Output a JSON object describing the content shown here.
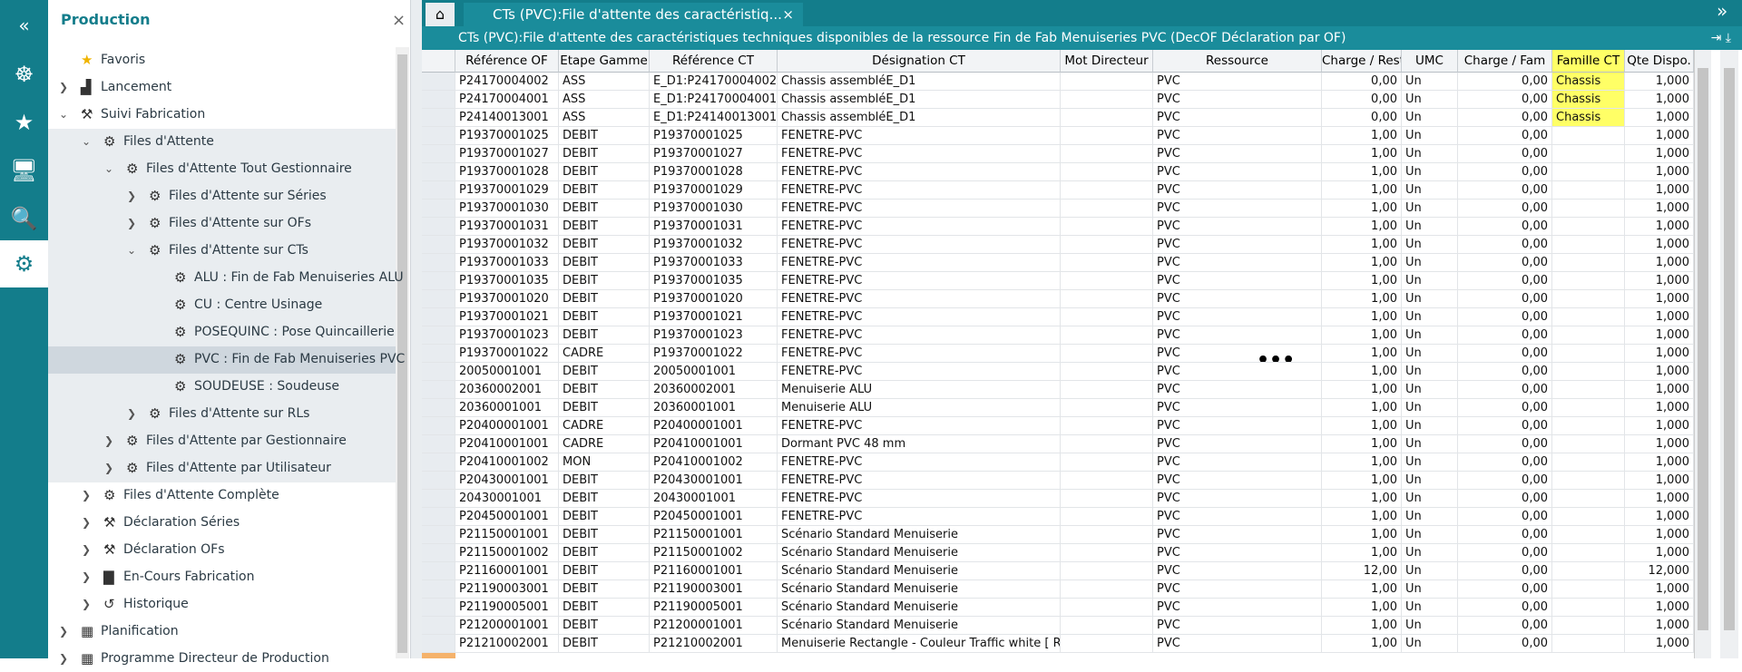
{
  "nav": {
    "title": "Production",
    "items": [
      "Favoris",
      "Lancement",
      "Suivi Fabrication",
      "Files d'Attente",
      "Files d'Attente Tout Gestionnaire",
      "Files d'Attente sur Séries",
      "Files d'Attente sur OFs",
      "Files d'Attente sur CTs",
      "ALU : Fin de Fab Menuiseries ALU",
      "CU : Centre Usinage",
      "POSEQUINC : Pose Quincaillerie",
      "PVC : Fin de Fab Menuiseries PVC",
      "SOUDEUSE : Soudeuse",
      "Files d'Attente sur RLs",
      "Files d'Attente par Gestionnaire",
      "Files d'Attente par Utilisateur",
      "Files d'Attente Complète",
      "Déclaration Séries",
      "Déclaration OFs",
      "En-Cours Fabrication",
      "Historique",
      "Planification",
      "Programme Directeur de Production"
    ]
  },
  "tab": {
    "label": "CTs (PVC):File d'attente des caractéristiq..."
  },
  "view": {
    "title": "CTs (PVC):File d'attente des caractéristiques techniques disponibles de la ressource Fin de Fab Menuiseries PVC (DecOF Déclaration par OF)"
  },
  "table": {
    "columns": [
      "Référence OF",
      "Etape Gamme",
      "Référence CT",
      "Désignation CT",
      "Mot Directeur",
      "Ressource",
      "Charge / Reste",
      "UMC",
      "Charge / Fam",
      "Famille CT",
      "Qte Dispo."
    ],
    "rows": [
      [
        "P24170004002",
        "ASS",
        "E_D1:P24170004002",
        "Chassis assembléE_D1",
        null,
        "PVC",
        "0,00",
        "Un",
        "0,00",
        "Chassis",
        "1,000"
      ],
      [
        "P24170004001",
        "ASS",
        "E_D1:P24170004001",
        "Chassis assembléE_D1",
        null,
        "PVC",
        "0,00",
        "Un",
        "0,00",
        "Chassis",
        "1,000"
      ],
      [
        "P24140013001",
        "ASS",
        "E_D1:P24140013001",
        "Chassis assembléE_D1",
        null,
        "PVC",
        "0,00",
        "Un",
        "0,00",
        "Chassis",
        "1,000"
      ],
      [
        "P19370001025",
        "DEBIT",
        "P19370001025",
        "FENETRE-PVC",
        null,
        "PVC",
        "1,00",
        "Un",
        "0,00",
        null,
        "1,000"
      ],
      [
        "P19370001027",
        "DEBIT",
        "P19370001027",
        "FENETRE-PVC",
        null,
        "PVC",
        "1,00",
        "Un",
        "0,00",
        null,
        "1,000"
      ],
      [
        "P19370001028",
        "DEBIT",
        "P19370001028",
        "FENETRE-PVC",
        null,
        "PVC",
        "1,00",
        "Un",
        "0,00",
        null,
        "1,000"
      ],
      [
        "P19370001029",
        "DEBIT",
        "P19370001029",
        "FENETRE-PVC",
        null,
        "PVC",
        "1,00",
        "Un",
        "0,00",
        null,
        "1,000"
      ],
      [
        "P19370001030",
        "DEBIT",
        "P19370001030",
        "FENETRE-PVC",
        null,
        "PVC",
        "1,00",
        "Un",
        "0,00",
        null,
        "1,000"
      ],
      [
        "P19370001031",
        "DEBIT",
        "P19370001031",
        "FENETRE-PVC",
        null,
        "PVC",
        "1,00",
        "Un",
        "0,00",
        null,
        "1,000"
      ],
      [
        "P19370001032",
        "DEBIT",
        "P19370001032",
        "FENETRE-PVC",
        null,
        "PVC",
        "1,00",
        "Un",
        "0,00",
        null,
        "1,000"
      ],
      [
        "P19370001033",
        "DEBIT",
        "P19370001033",
        "FENETRE-PVC",
        null,
        "PVC",
        "1,00",
        "Un",
        "0,00",
        null,
        "1,000"
      ],
      [
        "P19370001035",
        "DEBIT",
        "P19370001035",
        "FENETRE-PVC",
        null,
        "PVC",
        "1,00",
        "Un",
        "0,00",
        null,
        "1,000"
      ],
      [
        "P19370001020",
        "DEBIT",
        "P19370001020",
        "FENETRE-PVC",
        null,
        "PVC",
        "1,00",
        "Un",
        "0,00",
        null,
        "1,000"
      ],
      [
        "P19370001021",
        "DEBIT",
        "P19370001021",
        "FENETRE-PVC",
        null,
        "PVC",
        "1,00",
        "Un",
        "0,00",
        null,
        "1,000"
      ],
      [
        "P19370001023",
        "DEBIT",
        "P19370001023",
        "FENETRE-PVC",
        null,
        "PVC",
        "1,00",
        "Un",
        "0,00",
        null,
        "1,000"
      ],
      [
        "P19370001022",
        "CADRE",
        "P19370001022",
        "FENETRE-PVC",
        null,
        "PVC",
        "1,00",
        "Un",
        "0,00",
        null,
        "1,000"
      ],
      [
        "20050001001",
        "DEBIT",
        "20050001001",
        "FENETRE-PVC",
        null,
        "PVC",
        "1,00",
        "Un",
        "0,00",
        null,
        "1,000"
      ],
      [
        "20360002001",
        "DEBIT",
        "20360002001",
        "Menuiserie ALU",
        null,
        "PVC",
        "1,00",
        "Un",
        "0,00",
        null,
        "1,000"
      ],
      [
        "20360001001",
        "DEBIT",
        "20360001001",
        "Menuiserie ALU",
        null,
        "PVC",
        "1,00",
        "Un",
        "0,00",
        null,
        "1,000"
      ],
      [
        "P20400001001",
        "CADRE",
        "P20400001001",
        "FENETRE-PVC",
        null,
        "PVC",
        "1,00",
        "Un",
        "0,00",
        null,
        "1,000"
      ],
      [
        "P20410001001",
        "CADRE",
        "P20410001001",
        "Dormant PVC 48 mm",
        null,
        "PVC",
        "1,00",
        "Un",
        "0,00",
        null,
        "1,000"
      ],
      [
        "P20410001002",
        "MON",
        "P20410001002",
        "FENETRE-PVC",
        null,
        "PVC",
        "1,00",
        "Un",
        "0,00",
        null,
        "1,000"
      ],
      [
        "P20430001001",
        "DEBIT",
        "P20430001001",
        "FENETRE-PVC",
        null,
        "PVC",
        "1,00",
        "Un",
        "0,00",
        null,
        "1,000"
      ],
      [
        "20430001001",
        "DEBIT",
        "20430001001",
        "FENETRE-PVC",
        null,
        "PVC",
        "1,00",
        "Un",
        "0,00",
        null,
        "1,000"
      ],
      [
        "P20450001001",
        "DEBIT",
        "P20450001001",
        "FENETRE-PVC",
        null,
        "PVC",
        "1,00",
        "Un",
        "0,00",
        null,
        "1,000"
      ],
      [
        "P21150001001",
        "DEBIT",
        "P21150001001",
        "Scénario Standard Menuiserie",
        null,
        "PVC",
        "1,00",
        "Un",
        "0,00",
        null,
        "1,000"
      ],
      [
        "P21150001002",
        "DEBIT",
        "P21150001002",
        "Scénario Standard Menuiserie",
        null,
        "PVC",
        "1,00",
        "Un",
        "0,00",
        null,
        "1,000"
      ],
      [
        "P21160001001",
        "DEBIT",
        "P21160001001",
        "Scénario Standard Menuiserie",
        null,
        "PVC",
        "12,00",
        "Un",
        "0,00",
        null,
        "12,000"
      ],
      [
        "P21190003001",
        "DEBIT",
        "P21190003001",
        "Scénario Standard Menuiserie",
        null,
        "PVC",
        "1,00",
        "Un",
        "0,00",
        null,
        "1,000"
      ],
      [
        "P21190005001",
        "DEBIT",
        "P21190005001",
        "Scénario Standard Menuiserie",
        null,
        "PVC",
        "1,00",
        "Un",
        "0,00",
        null,
        "1,000"
      ],
      [
        "P21200001001",
        "DEBIT",
        "P21200001001",
        "Scénario Standard Menuiserie",
        null,
        "PVC",
        "1,00",
        "Un",
        "0,00",
        null,
        "1,000"
      ],
      [
        "P21210002001",
        "DEBIT",
        "P21210002001",
        "Menuiserie Rectangle - Couleur Traffic white  [ RA",
        null,
        "PVC",
        "1,00",
        "Un",
        "0,00",
        null,
        "1,000"
      ]
    ]
  }
}
